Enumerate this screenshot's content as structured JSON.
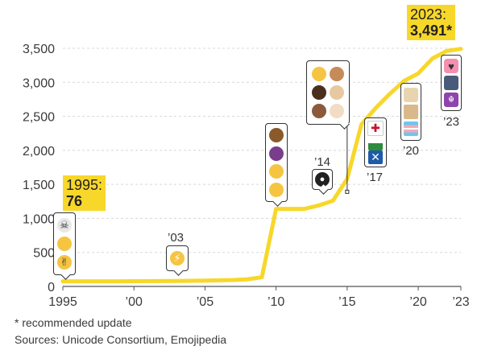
{
  "chart_data": {
    "type": "line",
    "title": "",
    "xlabel": "",
    "ylabel": "",
    "x": [
      1995,
      1997,
      1999,
      2001,
      2003,
      2005,
      2007,
      2008,
      2009,
      2010,
      2011,
      2012,
      2013,
      2014,
      2015,
      2016,
      2017,
      2018,
      2019,
      2020,
      2021,
      2022,
      2023
    ],
    "values": [
      76,
      76,
      76,
      78,
      80,
      85,
      95,
      105,
      135,
      1140,
      1140,
      1140,
      1190,
      1260,
      1580,
      2380,
      2620,
      2830,
      3020,
      3130,
      3350,
      3460,
      3491
    ],
    "xlim": [
      1995,
      2023
    ],
    "ylim": [
      0,
      3500
    ],
    "x_ticks": [
      1995,
      2000,
      2005,
      2010,
      2015,
      2020,
      2023
    ],
    "x_tick_labels": [
      "1995",
      "’00",
      "’05",
      "’10",
      "’15",
      "’20",
      "’23"
    ],
    "y_ticks": [
      0,
      500,
      1000,
      1500,
      2000,
      2500,
      3000,
      3500
    ],
    "y_tick_labels": [
      "0",
      "500",
      "1,000",
      "1,500",
      "2,000",
      "2,500",
      "3,000",
      "3,500"
    ],
    "grid": true,
    "line_color": "#f7d72a"
  },
  "callouts": {
    "start": {
      "year": "1995:",
      "value": "76"
    },
    "end": {
      "year": "2023:",
      "value": "3,491*"
    }
  },
  "year_labels": {
    "y2003": "’03",
    "y2014": "’14",
    "y2017": "’17",
    "y2020": "’20",
    "y2023": "’23"
  },
  "footnotes": {
    "note": "* recommended update",
    "sources": "Sources: Unicode Consortium, Emojipedia"
  },
  "colors": {
    "accent": "#f7d72a",
    "text": "#333333"
  }
}
